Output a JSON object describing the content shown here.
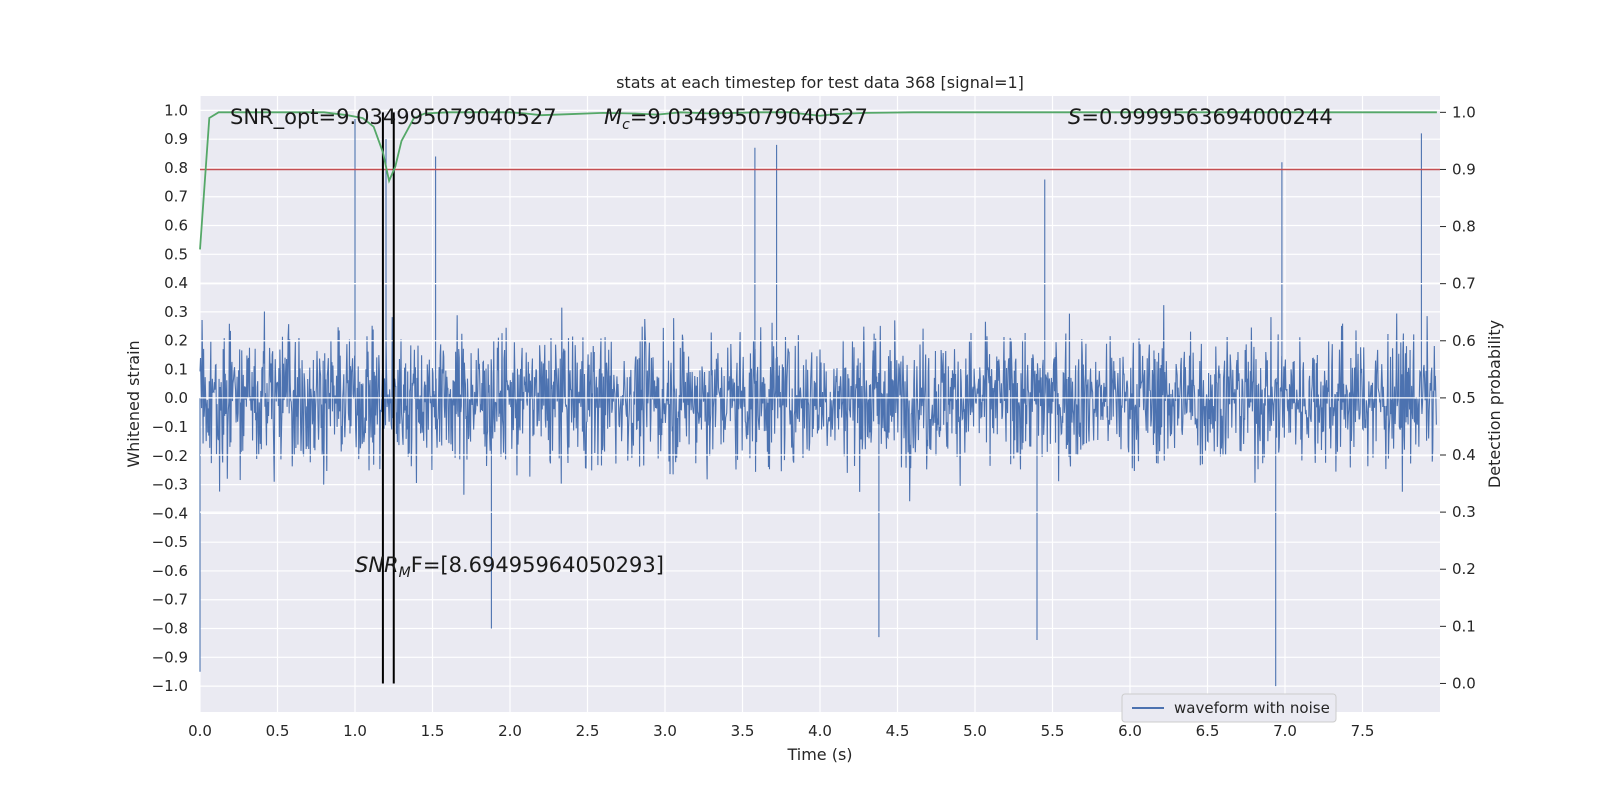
{
  "chart_data": {
    "type": "line",
    "title": "stats at each timestep for test data 368 [signal=1]",
    "xlabel": "Time (s)",
    "ylabel_left": "Whitened strain",
    "ylabel_right": "Detection probability",
    "xlim": [
      0.0,
      8.0
    ],
    "ylim_left": [
      -1.09,
      1.05
    ],
    "ylim_right": [
      -0.05,
      1.0286
    ],
    "x_ticks": [
      "0.0",
      "0.5",
      "1.0",
      "1.5",
      "2.0",
      "2.5",
      "3.0",
      "3.5",
      "4.0",
      "4.5",
      "5.0",
      "5.5",
      "6.0",
      "6.5",
      "7.0",
      "7.5"
    ],
    "y_left_ticks": [
      "1.0",
      "0.9",
      "0.8",
      "0.7",
      "0.6",
      "0.5",
      "0.4",
      "0.3",
      "0.2",
      "0.1",
      "0.0",
      "−0.1",
      "−0.2",
      "−0.3",
      "−0.4",
      "−0.5",
      "−0.6",
      "−0.7",
      "−0.8",
      "−0.9",
      "−1.0"
    ],
    "y_right_ticks": [
      "1.0",
      "0.9",
      "0.8",
      "0.7",
      "0.6",
      "0.5",
      "0.4",
      "0.3",
      "0.2",
      "0.1",
      "0.0"
    ],
    "annotations": {
      "snr_opt": "SNR_opt=9.034995079040527",
      "mc_symbol": "M",
      "mc_sub": "c",
      "mc_value": "=9.034995079040527",
      "s_symbol": "S",
      "s_value": "=0.9999563694000244",
      "snr_mf_symbol": "SNR",
      "snr_mf_sub": "M",
      "snr_mf_value": "F=[8.69495964050293]"
    },
    "legend": {
      "label": "waveform with noise",
      "position": "lower-right"
    },
    "series": [
      {
        "name": "waveform with noise",
        "axis": "left",
        "color": "#4c72b0",
        "notable_peaks": [
          {
            "x": 1.0,
            "y": 0.97
          },
          {
            "x": 1.2,
            "y": 0.9
          },
          {
            "x": 1.52,
            "y": 0.84
          },
          {
            "x": 3.58,
            "y": 0.87
          },
          {
            "x": 3.72,
            "y": 0.88
          },
          {
            "x": 5.45,
            "y": 0.76
          },
          {
            "x": 6.98,
            "y": 0.82
          },
          {
            "x": 7.88,
            "y": 0.92
          }
        ],
        "notable_troughs": [
          {
            "x": 0.0,
            "y": -0.95
          },
          {
            "x": 1.88,
            "y": -0.8
          },
          {
            "x": 4.38,
            "y": -0.83
          },
          {
            "x": 5.4,
            "y": -0.84
          },
          {
            "x": 6.94,
            "y": -1.0
          }
        ]
      },
      {
        "name": "detection probability",
        "axis": "right",
        "color": "#55a868",
        "x": [
          0.0,
          0.06,
          0.12,
          0.2,
          0.4,
          0.6,
          0.8,
          0.95,
          1.05,
          1.12,
          1.18,
          1.22,
          1.26,
          1.3,
          1.38,
          1.45,
          1.6,
          1.8,
          2.0,
          2.1,
          2.2,
          2.4,
          2.6,
          2.8,
          2.95,
          3.1,
          3.3,
          3.6,
          3.8,
          4.0,
          4.1,
          4.3,
          4.6,
          5.0,
          5.5,
          6.0,
          6.5,
          7.0,
          7.5,
          7.98
        ],
        "y": [
          0.76,
          0.99,
          1.0,
          1.0,
          1.0,
          1.0,
          1.0,
          0.995,
          0.99,
          0.975,
          0.93,
          0.88,
          0.905,
          0.95,
          0.99,
          0.998,
          1.0,
          1.0,
          1.0,
          0.998,
          0.995,
          0.997,
          0.999,
          0.998,
          0.996,
          1.0,
          0.998,
          1.0,
          1.0,
          0.994,
          0.997,
          0.999,
          1.0,
          1.0,
          1.0,
          1.0,
          1.0,
          1.0,
          1.0,
          1.0
        ]
      }
    ],
    "threshold": {
      "axis": "right",
      "value": 0.9,
      "color": "#c44e52"
    },
    "vertical_markers": [
      1.18,
      1.25
    ],
    "grid": true
  }
}
